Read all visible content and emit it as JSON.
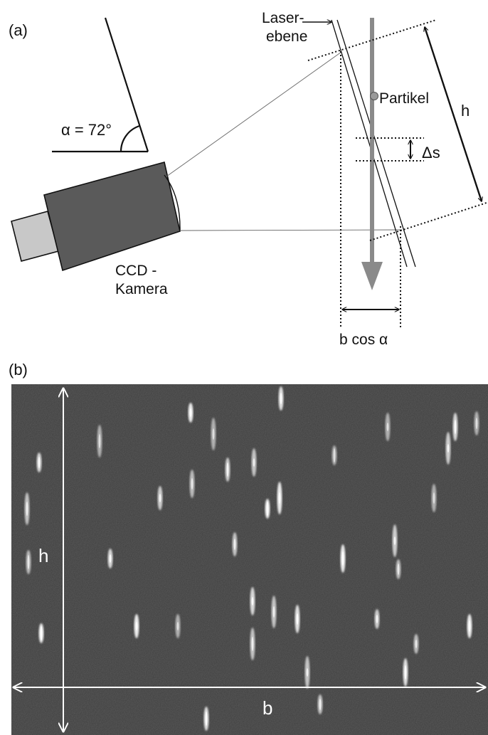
{
  "panel_a": {
    "label": "(a)",
    "angle_label": "α = 72°",
    "laser_label_line1": "Laser-",
    "laser_label_line2": "ebene",
    "particle_label": "Partikel",
    "height_label": "h",
    "delta_label": "Δs",
    "camera_label_line1": "CCD -",
    "camera_label_line2": "Kamera",
    "width_label": "b cos α"
  },
  "panel_b": {
    "label": "(b)",
    "height_label": "h",
    "width_label": "b"
  },
  "colors": {
    "camera_body": "#5a5a5a",
    "camera_back": "#c8c8c8",
    "flow_arrow": "#8a8a8a",
    "photo_bg": "#3d3d3d"
  }
}
